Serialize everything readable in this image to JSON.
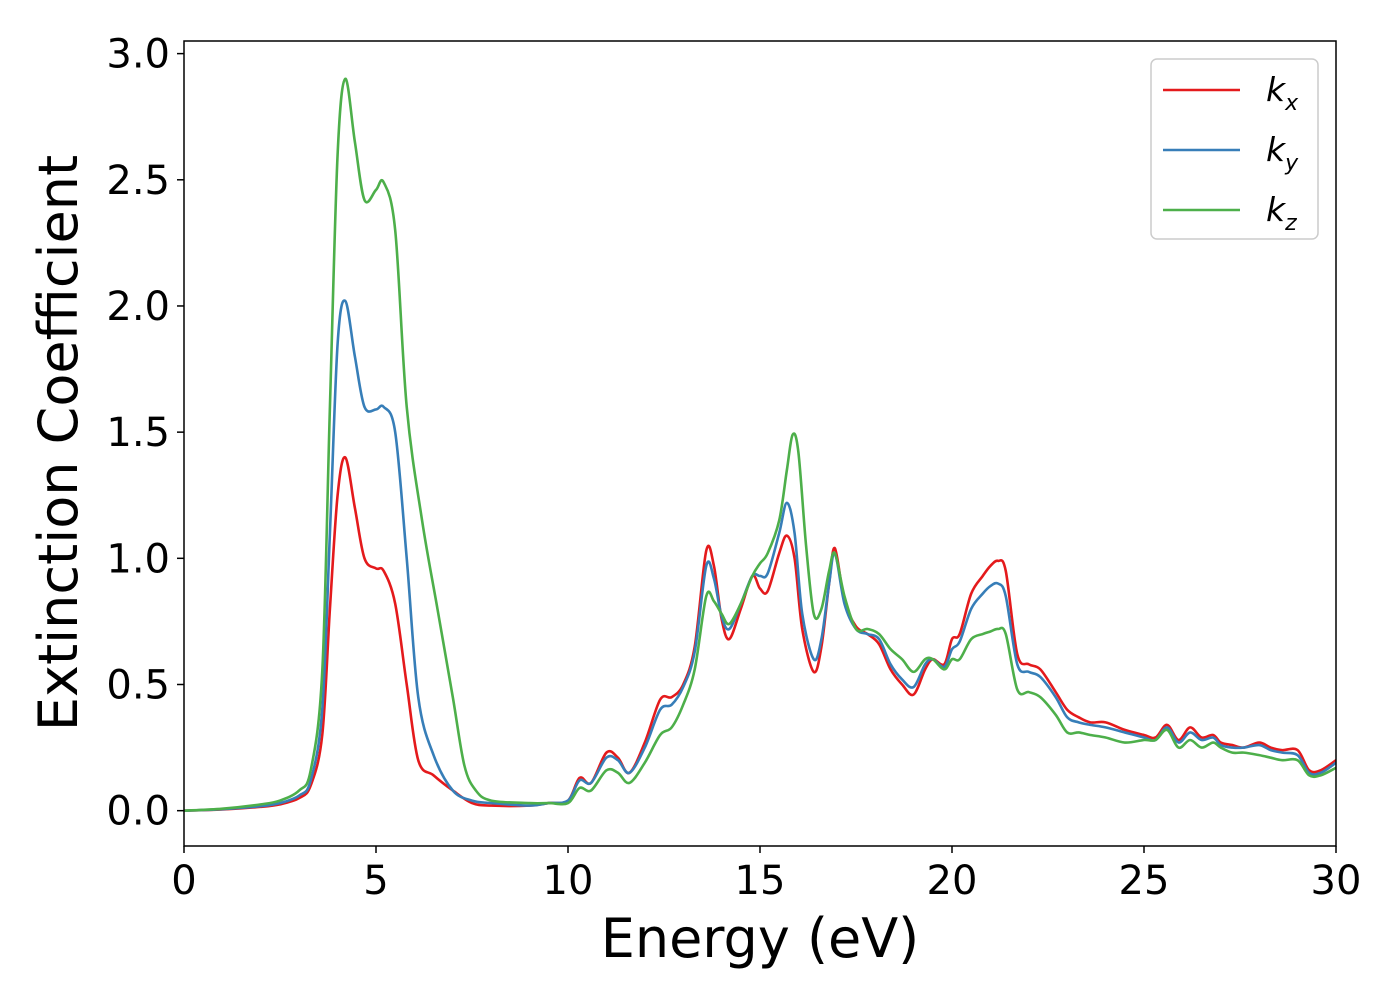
{
  "chart_data": {
    "type": "line",
    "xlabel": "Energy (eV)",
    "ylabel": "Extinction Coefficient",
    "xlim": [
      0,
      30
    ],
    "ylim": [
      -0.14,
      3.05
    ],
    "xticks": [
      0,
      5,
      10,
      15,
      20,
      25,
      30
    ],
    "xtick_labels": [
      "0",
      "5",
      "10",
      "15",
      "20",
      "25",
      "30"
    ],
    "yticks": [
      0.0,
      0.5,
      1.0,
      1.5,
      2.0,
      2.5,
      3.0
    ],
    "ytick_labels": [
      "0.0",
      "0.5",
      "1.0",
      "1.5",
      "2.0",
      "2.5",
      "3.0"
    ],
    "grid": false,
    "legend_position": "top-right",
    "series": [
      {
        "name": "k",
        "subscript": "x",
        "color": "#e41a1c",
        "x": [
          0,
          1,
          2,
          2.5,
          3,
          3.3,
          3.6,
          3.8,
          4.0,
          4.2,
          4.45,
          4.7,
          5.0,
          5.2,
          5.5,
          5.8,
          6.1,
          6.5,
          7.0,
          7.5,
          8.0,
          9.0,
          9.5,
          10.0,
          10.3,
          10.6,
          11.0,
          11.3,
          11.6,
          12.0,
          12.4,
          12.7,
          13.0,
          13.3,
          13.6,
          13.8,
          14.0,
          14.2,
          14.5,
          14.8,
          15.0,
          15.2,
          15.5,
          15.7,
          15.9,
          16.1,
          16.4,
          16.6,
          16.8,
          16.95,
          17.2,
          17.5,
          17.8,
          18.1,
          18.4,
          18.7,
          19.0,
          19.3,
          19.5,
          19.8,
          20.0,
          20.2,
          20.5,
          20.8,
          21.0,
          21.2,
          21.4,
          21.7,
          22.0,
          22.3,
          22.7,
          23.0,
          23.3,
          23.6,
          24.0,
          24.5,
          25.0,
          25.3,
          25.6,
          25.9,
          26.2,
          26.5,
          26.8,
          27.0,
          27.3,
          27.6,
          28.0,
          28.3,
          28.6,
          29.0,
          29.3,
          29.6,
          30.0
        ],
        "y": [
          0.0,
          0.005,
          0.015,
          0.025,
          0.05,
          0.1,
          0.3,
          0.8,
          1.25,
          1.4,
          1.2,
          1.0,
          0.96,
          0.95,
          0.82,
          0.5,
          0.2,
          0.14,
          0.08,
          0.03,
          0.02,
          0.02,
          0.03,
          0.04,
          0.13,
          0.11,
          0.23,
          0.21,
          0.15,
          0.27,
          0.44,
          0.45,
          0.5,
          0.65,
          1.03,
          0.97,
          0.76,
          0.68,
          0.8,
          0.93,
          0.88,
          0.87,
          1.02,
          1.09,
          1.0,
          0.72,
          0.55,
          0.65,
          0.9,
          1.04,
          0.83,
          0.73,
          0.7,
          0.66,
          0.56,
          0.5,
          0.46,
          0.56,
          0.6,
          0.58,
          0.68,
          0.7,
          0.86,
          0.93,
          0.97,
          0.99,
          0.95,
          0.62,
          0.58,
          0.56,
          0.47,
          0.4,
          0.37,
          0.35,
          0.35,
          0.32,
          0.3,
          0.29,
          0.34,
          0.28,
          0.33,
          0.29,
          0.3,
          0.27,
          0.26,
          0.25,
          0.27,
          0.25,
          0.24,
          0.24,
          0.16,
          0.16,
          0.2
        ]
      },
      {
        "name": "k",
        "subscript": "y",
        "color": "#377eb8",
        "x": [
          0,
          1,
          2,
          2.5,
          3,
          3.3,
          3.6,
          3.8,
          4.0,
          4.2,
          4.45,
          4.7,
          5.0,
          5.2,
          5.5,
          5.8,
          6.1,
          6.5,
          7.0,
          7.5,
          8.0,
          9.0,
          9.5,
          10.0,
          10.3,
          10.6,
          11.0,
          11.3,
          11.6,
          12.0,
          12.4,
          12.7,
          13.0,
          13.3,
          13.6,
          13.8,
          14.0,
          14.2,
          14.5,
          14.8,
          15.0,
          15.2,
          15.5,
          15.7,
          15.9,
          16.1,
          16.4,
          16.6,
          16.8,
          16.95,
          17.2,
          17.5,
          17.8,
          18.1,
          18.4,
          18.7,
          19.0,
          19.3,
          19.5,
          19.8,
          20.0,
          20.2,
          20.5,
          20.8,
          21.0,
          21.2,
          21.4,
          21.7,
          22.0,
          22.3,
          22.7,
          23.0,
          23.3,
          23.6,
          24.0,
          24.5,
          25.0,
          25.3,
          25.6,
          25.9,
          26.2,
          26.5,
          26.8,
          27.0,
          27.3,
          27.6,
          28.0,
          28.3,
          28.6,
          29.0,
          29.3,
          29.6,
          30.0
        ],
        "y": [
          0.0,
          0.006,
          0.018,
          0.03,
          0.06,
          0.12,
          0.4,
          1.1,
          1.85,
          2.02,
          1.8,
          1.6,
          1.59,
          1.6,
          1.5,
          1.0,
          0.45,
          0.22,
          0.08,
          0.04,
          0.03,
          0.02,
          0.03,
          0.04,
          0.12,
          0.11,
          0.21,
          0.2,
          0.15,
          0.25,
          0.4,
          0.42,
          0.49,
          0.63,
          0.97,
          0.92,
          0.77,
          0.72,
          0.82,
          0.93,
          0.93,
          0.94,
          1.1,
          1.22,
          1.1,
          0.78,
          0.6,
          0.68,
          0.9,
          1.02,
          0.82,
          0.72,
          0.7,
          0.68,
          0.58,
          0.52,
          0.49,
          0.58,
          0.6,
          0.57,
          0.64,
          0.67,
          0.8,
          0.86,
          0.89,
          0.9,
          0.85,
          0.58,
          0.55,
          0.53,
          0.45,
          0.37,
          0.35,
          0.34,
          0.33,
          0.31,
          0.29,
          0.28,
          0.33,
          0.27,
          0.31,
          0.28,
          0.29,
          0.26,
          0.25,
          0.25,
          0.26,
          0.24,
          0.23,
          0.22,
          0.15,
          0.15,
          0.19
        ]
      },
      {
        "name": "k",
        "subscript": "z",
        "color": "#4daf4a",
        "x": [
          0,
          1,
          2,
          2.5,
          3,
          3.3,
          3.6,
          3.8,
          4.0,
          4.2,
          4.45,
          4.7,
          5.0,
          5.2,
          5.5,
          5.8,
          6.2,
          6.6,
          7.0,
          7.3,
          7.6,
          8.0,
          9.0,
          9.5,
          10.0,
          10.3,
          10.6,
          11.0,
          11.3,
          11.6,
          12.0,
          12.4,
          12.7,
          13.0,
          13.3,
          13.6,
          13.8,
          14.0,
          14.2,
          14.5,
          14.8,
          15.0,
          15.2,
          15.5,
          15.7,
          15.85,
          16.0,
          16.2,
          16.4,
          16.6,
          16.8,
          16.95,
          17.2,
          17.5,
          17.8,
          18.1,
          18.4,
          18.7,
          19.0,
          19.3,
          19.5,
          19.8,
          20.0,
          20.2,
          20.5,
          20.8,
          21.0,
          21.2,
          21.4,
          21.7,
          22.0,
          22.3,
          22.7,
          23.0,
          23.3,
          23.6,
          24.0,
          24.5,
          25.0,
          25.3,
          25.6,
          25.9,
          26.2,
          26.5,
          26.8,
          27.0,
          27.3,
          27.6,
          28.0,
          28.3,
          28.6,
          29.0,
          29.3,
          29.6,
          30.0
        ],
        "y": [
          0.0,
          0.008,
          0.025,
          0.04,
          0.08,
          0.16,
          0.55,
          1.6,
          2.6,
          2.9,
          2.65,
          2.42,
          2.46,
          2.49,
          2.3,
          1.6,
          1.15,
          0.8,
          0.45,
          0.18,
          0.08,
          0.04,
          0.03,
          0.03,
          0.03,
          0.09,
          0.08,
          0.16,
          0.15,
          0.11,
          0.19,
          0.3,
          0.33,
          0.42,
          0.56,
          0.85,
          0.83,
          0.78,
          0.74,
          0.82,
          0.93,
          0.98,
          1.02,
          1.15,
          1.35,
          1.49,
          1.42,
          1.05,
          0.78,
          0.8,
          0.95,
          1.02,
          0.85,
          0.72,
          0.72,
          0.7,
          0.64,
          0.6,
          0.55,
          0.6,
          0.6,
          0.56,
          0.6,
          0.6,
          0.68,
          0.7,
          0.71,
          0.72,
          0.7,
          0.48,
          0.47,
          0.45,
          0.38,
          0.31,
          0.31,
          0.3,
          0.29,
          0.27,
          0.28,
          0.28,
          0.32,
          0.25,
          0.28,
          0.25,
          0.27,
          0.25,
          0.23,
          0.23,
          0.22,
          0.21,
          0.2,
          0.2,
          0.14,
          0.14,
          0.17
        ]
      }
    ]
  }
}
